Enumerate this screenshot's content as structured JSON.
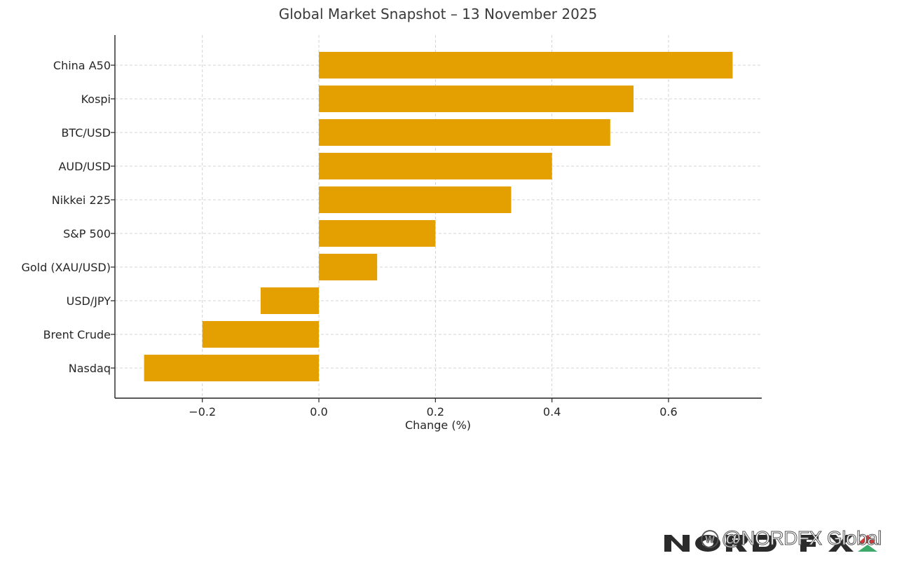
{
  "chart_data": {
    "type": "bar",
    "orientation": "horizontal",
    "title": "Global Market Snapshot – 13 November 2025",
    "xlabel": "Change (%)",
    "ylabel": "",
    "categories": [
      "China A50",
      "Kospi",
      "BTC/USD",
      "AUD/USD",
      "Nikkei 225",
      "S&P 500",
      "Gold (XAU/USD)",
      "USD/JPY",
      "Brent Crude",
      "Nasdaq"
    ],
    "values": [
      0.71,
      0.54,
      0.5,
      0.4,
      0.33,
      0.2,
      0.1,
      -0.1,
      -0.2,
      -0.3
    ],
    "xlim": [
      -0.35,
      0.76
    ],
    "xticks": [
      -0.2,
      0.0,
      0.2,
      0.4,
      0.6
    ],
    "xtick_labels": [
      "−0.2",
      "0.0",
      "0.2",
      "0.4",
      "0.6"
    ],
    "grid": true,
    "bar_color": "#E3A000"
  },
  "branding": {
    "logo_text": "NORD FX",
    "watermark_icon": "weibo-icon",
    "watermark_text": "@NORDFX Global"
  }
}
